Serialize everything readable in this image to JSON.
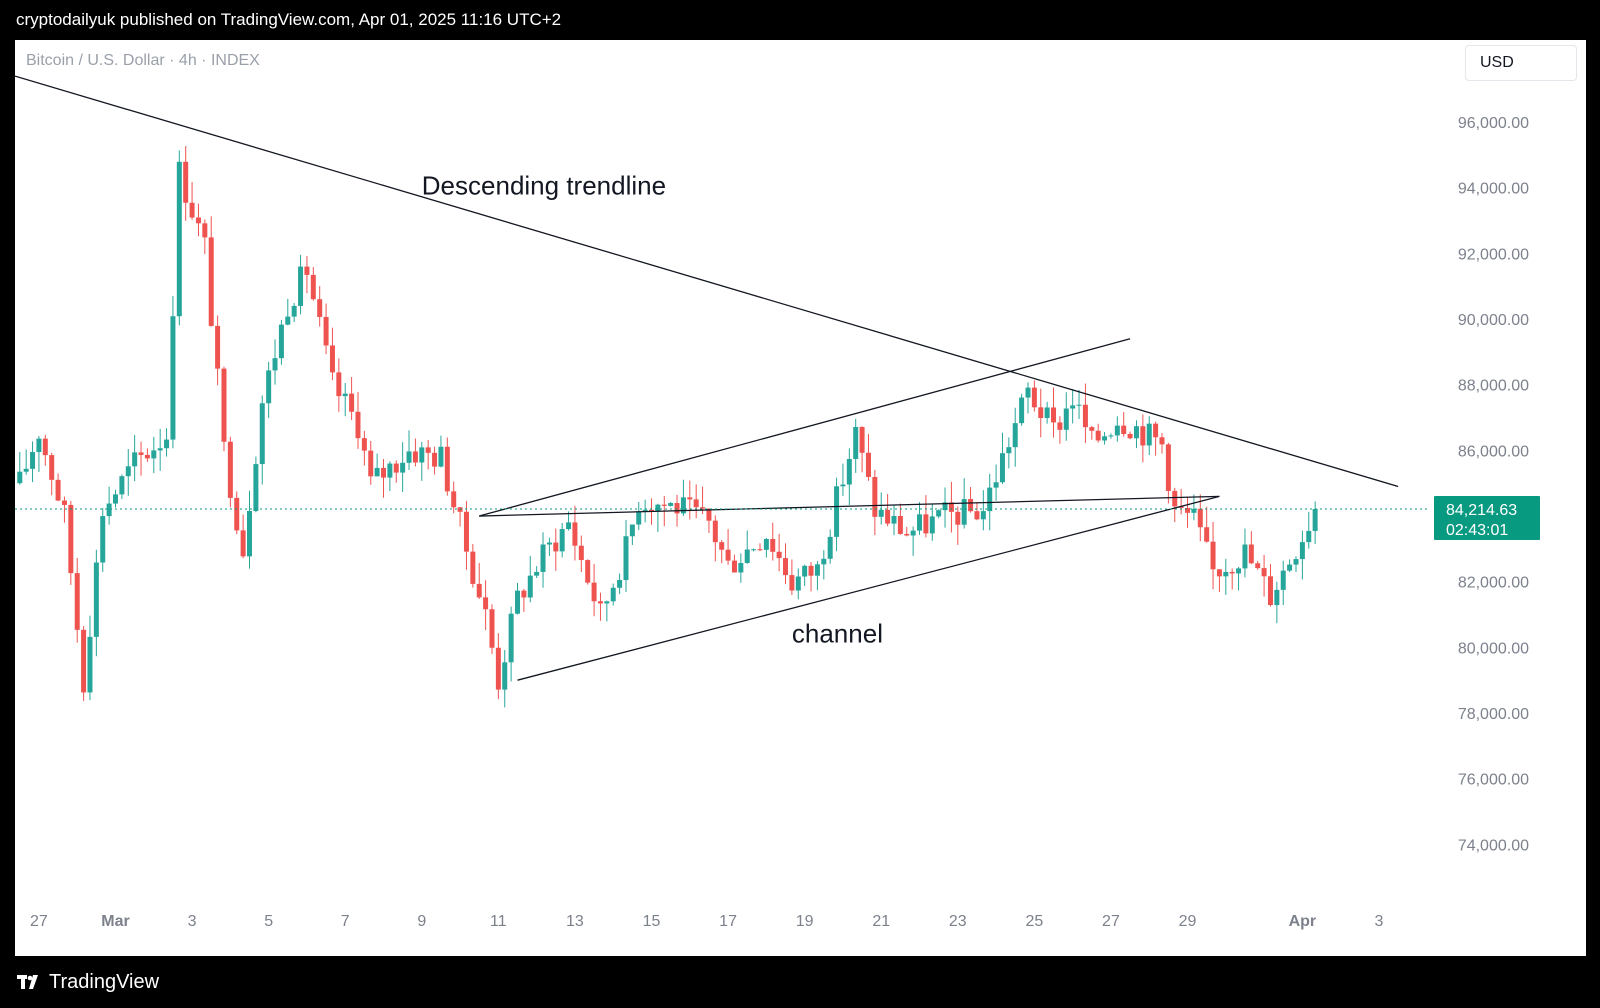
{
  "header": {
    "publish_line": "cryptodailyuk published on TradingView.com, Apr 01, 2025 11:16 UTC+2"
  },
  "toolbar": {
    "symbol_title": "Bitcoin / U.S. Dollar · 4h · INDEX",
    "currency": "USD"
  },
  "footer": {
    "brand": "TradingView"
  },
  "price_label": {
    "price": "84,214.63",
    "countdown": "02:43:01"
  },
  "colors": {
    "up": "#26a69a",
    "down": "#ef5350",
    "price_tag": "#089981",
    "axis_text": "#7c818c"
  },
  "chart_data": {
    "type": "candlestick",
    "title": "Bitcoin / U.S. Dollar · 4h · INDEX",
    "ylim": [
      72000,
      98500
    ],
    "y_ticks": [
      96000,
      94000,
      92000,
      90000,
      88000,
      86000,
      84000,
      82000,
      80000,
      78000,
      76000,
      74000
    ],
    "y_tick_labels": [
      "96,000.00",
      "94,000.00",
      "92,000.00",
      "90,000.00",
      "88,000.00",
      "86,000.00",
      "84,000.00",
      "82,000.00",
      "80,000.00",
      "78,000.00",
      "76,000.00",
      "74,000.00"
    ],
    "x_tick_labels": [
      "27",
      "Mar",
      "3",
      "5",
      "7",
      "9",
      "11",
      "13",
      "15",
      "17",
      "19",
      "21",
      "23",
      "25",
      "27",
      "29",
      "Apr",
      "3"
    ],
    "x_tick_dates": [
      "2025-02-27",
      "2025-03-01",
      "2025-03-03",
      "2025-03-05",
      "2025-03-07",
      "2025-03-09",
      "2025-03-11",
      "2025-03-13",
      "2025-03-15",
      "2025-03-17",
      "2025-03-19",
      "2025-03-21",
      "2025-03-23",
      "2025-03-25",
      "2025-03-27",
      "2025-03-29",
      "2025-04-01",
      "2025-04-03"
    ],
    "x_range": [
      "2025-02-26 09:00",
      "2025-04-04 08:00"
    ],
    "last_price": 84214.63,
    "candle_interval": "4h",
    "waypoints": [
      [
        "2025-02-26 12:00",
        85000
      ],
      [
        "2025-02-27 00:00",
        86600
      ],
      [
        "2025-02-27 16:00",
        84000
      ],
      [
        "2025-02-28 04:00",
        79000
      ],
      [
        "2025-02-28 16:00",
        84200
      ],
      [
        "2025-03-01 12:00",
        85600
      ],
      [
        "2025-03-02 08:00",
        86500
      ],
      [
        "2025-03-02 16:00",
        94500
      ],
      [
        "2025-03-03 08:00",
        92200
      ],
      [
        "2025-03-03 20:00",
        86000
      ],
      [
        "2025-03-04 08:00",
        83000
      ],
      [
        "2025-03-04 20:00",
        87500
      ],
      [
        "2025-03-05 12:00",
        90500
      ],
      [
        "2025-03-06 00:00",
        91500
      ],
      [
        "2025-03-06 16:00",
        88000
      ],
      [
        "2025-03-07 08:00",
        86800
      ],
      [
        "2025-03-07 16:00",
        85000
      ],
      [
        "2025-03-08 16:00",
        86000
      ],
      [
        "2025-03-09 12:00",
        85800
      ],
      [
        "2025-03-10 04:00",
        83000
      ],
      [
        "2025-03-10 16:00",
        81000
      ],
      [
        "2025-03-11 00:00",
        79000
      ],
      [
        "2025-03-11 12:00",
        81500
      ],
      [
        "2025-03-12 04:00",
        82800
      ],
      [
        "2025-03-12 20:00",
        83800
      ],
      [
        "2025-03-13 16:00",
        81000
      ],
      [
        "2025-03-14 08:00",
        83000
      ],
      [
        "2025-03-14 16:00",
        84500
      ],
      [
        "2025-03-15 16:00",
        84300
      ],
      [
        "2025-03-16 12:00",
        83800
      ],
      [
        "2025-03-17 00:00",
        82500
      ],
      [
        "2025-03-18 00:00",
        83500
      ],
      [
        "2025-03-18 16:00",
        82000
      ],
      [
        "2025-03-19 08:00",
        82400
      ],
      [
        "2025-03-19 20:00",
        84500
      ],
      [
        "2025-03-20 08:00",
        86500
      ],
      [
        "2025-03-20 20:00",
        84200
      ],
      [
        "2025-03-21 16:00",
        83500
      ],
      [
        "2025-03-22 16:00",
        84000
      ],
      [
        "2025-03-23 16:00",
        84200
      ],
      [
        "2025-03-24 08:00",
        86300
      ],
      [
        "2025-03-24 20:00",
        87800
      ],
      [
        "2025-03-25 12:00",
        86600
      ],
      [
        "2025-03-26 00:00",
        87600
      ],
      [
        "2025-03-26 12:00",
        86200
      ],
      [
        "2025-03-27 04:00",
        87000
      ],
      [
        "2025-03-27 16:00",
        86700
      ],
      [
        "2025-03-28 08:00",
        86200
      ],
      [
        "2025-03-28 16:00",
        84200
      ],
      [
        "2025-03-29 04:00",
        83900
      ],
      [
        "2025-03-29 16:00",
        82300
      ],
      [
        "2025-03-30 12:00",
        82900
      ],
      [
        "2025-03-31 04:00",
        81600
      ],
      [
        "2025-03-31 16:00",
        82700
      ],
      [
        "2025-04-01 08:00",
        84214.63
      ]
    ],
    "trendlines": [
      {
        "label": "Descending trendline",
        "from": [
          "2025-02-26 09:00",
          97400
        ],
        "to": [
          "2025-04-03 12:00",
          84900
        ]
      },
      {
        "label": "channel",
        "from": [
          "2025-03-10 12:00",
          84000
        ],
        "to": [
          "2025-03-29 20:00",
          84600
        ]
      },
      {
        "label": "",
        "from": [
          "2025-03-11 12:00",
          79000
        ],
        "to": [
          "2025-03-29 20:00",
          84600
        ]
      },
      {
        "label": "",
        "from": [
          "2025-03-10 12:00",
          84000
        ],
        "to": [
          "2025-03-27 12:00",
          89400
        ]
      }
    ],
    "annotations": [
      "Descending trendline",
      "channel"
    ]
  }
}
